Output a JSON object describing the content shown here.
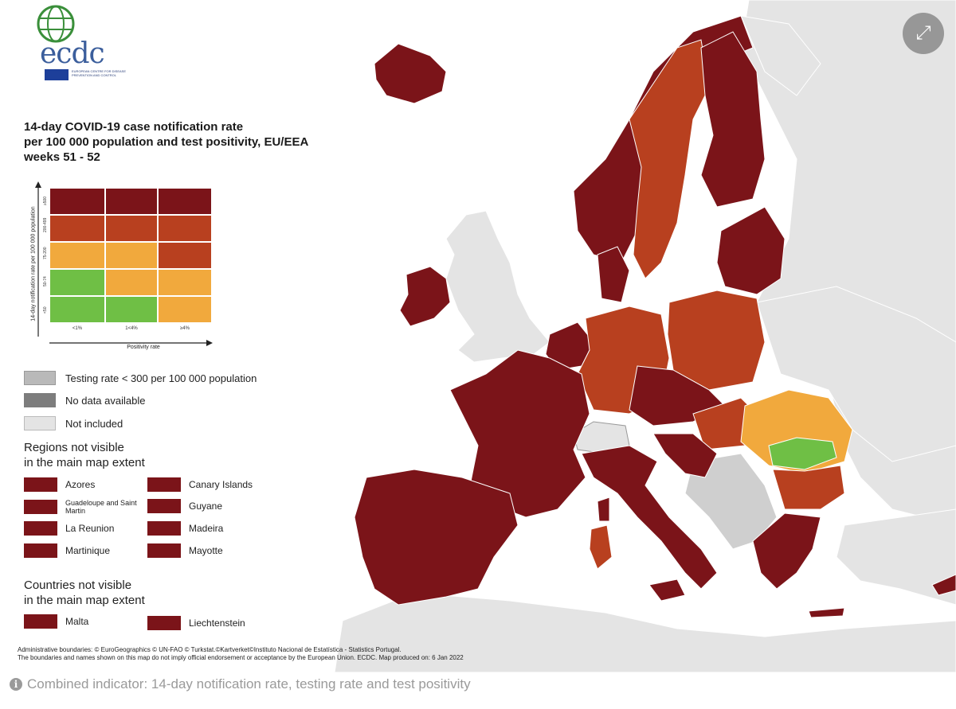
{
  "logo": {
    "word": "ecdc",
    "subtitle": "EUROPEAN CENTRE FOR DISEASE PREVENTION AND CONTROL"
  },
  "title": {
    "line1": "14-day COVID-19 case notification rate",
    "line2": "per 100 000 population and test positivity, EU/EEA",
    "line3": "weeks 51 - 52"
  },
  "matrix": {
    "y_axis_label": "14-day notification rate per 100 000 population",
    "x_axis_label": "Positivity rate",
    "x_ticks": [
      "<1%",
      "1<4%",
      "≥4%"
    ],
    "y_ticks": [
      "≥500",
      "200-499",
      "75-200",
      "50-74",
      "<50"
    ]
  },
  "colors": {
    "dark_red": "#7b1419",
    "red": "#b8401f",
    "orange": "#f1a93d",
    "green": "#6fbf45",
    "grey_testing": "#b9b9b9",
    "grey_nodata": "#7d7d7d",
    "grey_notincl": "#e4e4e4",
    "sea": "#ffffff"
  },
  "legend": {
    "testing_rate": "Testing rate < 300 per 100 000 population",
    "no_data": "No data available",
    "not_included": "Not included"
  },
  "regions": {
    "heading_line1": "Regions not visible",
    "heading_line2": "in the main map extent",
    "items": [
      "Azores",
      "Canary Islands",
      "Guadeloupe and Saint Martin",
      "Guyane",
      "La Reunion",
      "Madeira",
      "Martinique",
      "Mayotte"
    ]
  },
  "countries": {
    "heading_line1": "Countries not visible",
    "heading_line2": "in the main map extent",
    "items": [
      "Malta",
      "Liechtenstein"
    ]
  },
  "footer": {
    "line1": "Administrative boundaries: © EuroGeographics © UN-FAO © Turkstat.©Kartverket©Instituto Nacional de Estatística - Statistics Portugal.",
    "line2": "The boundaries and names shown on this map do not imply official endorsement or acceptance by the European Union. ECDC. Map produced on: 6 Jan 2022"
  },
  "caption": "Combined indicator: 14-day notification rate, testing rate and test positivity",
  "expand_icon": "expand-arrows-icon"
}
